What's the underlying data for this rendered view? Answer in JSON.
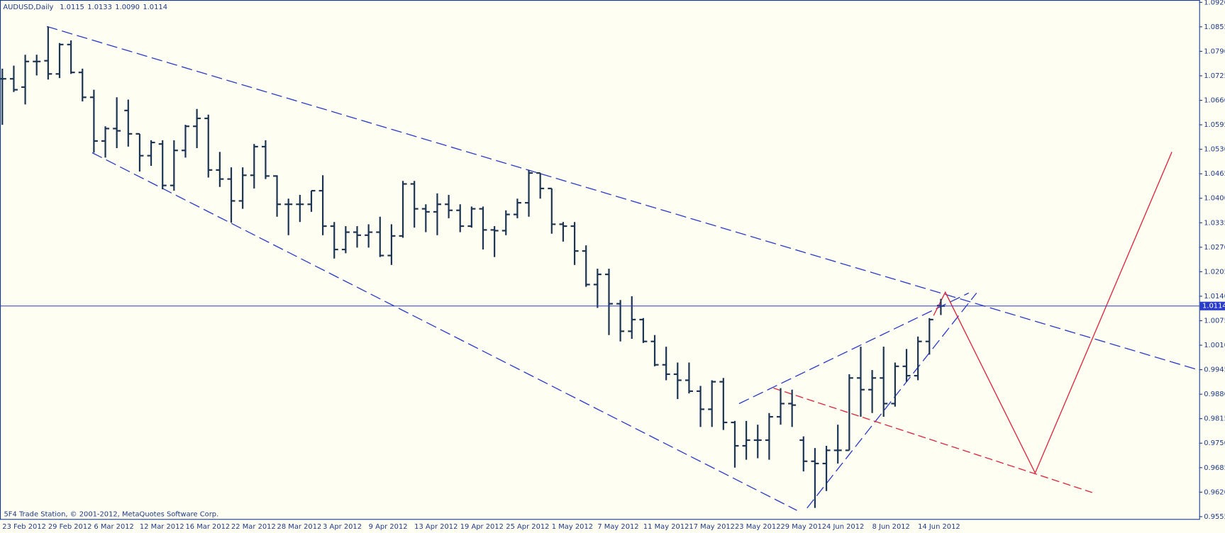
{
  "chart_data": {
    "type": "ohlc",
    "title": "AUDUSD,Daily",
    "header_values": [
      "1.0115",
      "1.0133",
      "1.0090",
      "1.0114"
    ],
    "footer": "5F4 Trade Station, © 2001-2012, MetaQuotes Software Corp.",
    "color": "#1c3553",
    "categories": [
      "23 Feb 2012",
      null,
      null,
      null,
      "29 Feb 2012",
      null,
      null,
      null,
      "6 Mar 2012",
      null,
      null,
      null,
      "12 Mar 2012",
      null,
      null,
      null,
      "16 Mar 2012",
      null,
      null,
      null,
      "22 Mar 2012",
      null,
      null,
      null,
      "28 Mar 2012",
      null,
      null,
      null,
      "3 Apr 2012",
      null,
      null,
      null,
      "9 Apr 2012",
      null,
      null,
      null,
      "13 Apr 2012",
      null,
      null,
      null,
      "19 Apr 2012",
      null,
      null,
      null,
      "25 Apr 2012",
      null,
      null,
      null,
      "1 May 2012",
      null,
      null,
      null,
      "7 May 2012",
      null,
      null,
      null,
      "11 May 2012",
      null,
      null,
      null,
      "17 May 2012",
      null,
      null,
      null,
      "23 May 2012",
      null,
      null,
      null,
      "29 May 2012",
      null,
      null,
      null,
      "4 Jun 2012",
      null,
      null,
      null,
      "8 Jun 2012",
      null,
      null,
      null,
      "14 Jun 2012",
      null,
      null
    ],
    "open": [
      1.0717,
      1.0717,
      1.0695,
      1.0763,
      1.0765,
      1.073,
      1.0808,
      1.0734,
      1.0668,
      1.0552,
      1.0585,
      1.0633,
      1.0571,
      1.0513,
      1.0544,
      1.0434,
      1.0527,
      1.0591,
      1.0612,
      1.0475,
      1.0451,
      1.0393,
      1.0461,
      1.0537,
      1.0459,
      1.0384,
      1.0384,
      1.0384,
      1.042,
      1.0326,
      1.0264,
      1.031,
      1.0302,
      1.031,
      1.0248,
      1.03,
      1.0438,
      1.0372,
      1.0364,
      1.0384,
      1.0368,
      1.0326,
      1.0372,
      1.0316,
      1.0314,
      1.0357,
      1.0388,
      1.0467,
      1.0426,
      1.0331,
      1.0326,
      1.026,
      1.0171,
      1.0198,
      1.012,
      1.0047,
      1.0078,
      1.002,
      0.9958,
      0.9933,
      0.9917,
      0.9888,
      0.984,
      0.9913,
      0.9805,
      0.9743,
      0.9758,
      0.9758,
      0.982,
      0.9855,
      0.9758,
      0.9702,
      0.9696,
      0.9731,
      0.9731,
      0.9923,
      0.9892,
      0.9923,
      0.9855,
      0.9954,
      0.9929,
      1.002,
      1.0115
    ],
    "high": [
      1.0744,
      1.0752,
      1.0781,
      1.0781,
      1.0856,
      1.0812,
      1.0819,
      1.0744,
      1.0688,
      1.0591,
      1.0668,
      1.0662,
      1.0571,
      1.0554,
      1.0554,
      1.0554,
      1.0595,
      1.0637,
      1.0622,
      1.0523,
      1.0482,
      1.0482,
      1.0544,
      1.0554,
      1.0461,
      1.0399,
      1.0409,
      1.042,
      1.0461,
      1.0337,
      1.0326,
      1.0326,
      1.0331,
      1.0351,
      1.0331,
      1.0446,
      1.0446,
      1.0384,
      1.0413,
      1.0409,
      1.0384,
      1.0378,
      1.0378,
      1.0326,
      1.0368,
      1.0399,
      1.0475,
      1.0467,
      1.0426,
      1.0337,
      1.0337,
      1.0275,
      1.0213,
      1.0213,
      1.013,
      1.014,
      1.0082,
      1.0037,
      1.0006,
      0.9964,
      0.9964,
      0.9902,
      0.9917,
      0.9923,
      0.9809,
      0.9809,
      0.9799,
      0.983,
      0.9896,
      0.9892,
      0.9768,
      0.9737,
      0.9743,
      0.9799,
      0.9933,
      1.0006,
      0.9944,
      1.0006,
      0.9964,
      1.0,
      1.0033,
      1.0082,
      1.0133
    ],
    "low": [
      1.0595,
      1.0682,
      1.0649,
      1.0726,
      1.0715,
      1.0719,
      1.073,
      1.0657,
      1.0521,
      1.0508,
      1.0533,
      1.0537,
      1.0471,
      1.0486,
      1.0424,
      1.042,
      1.0508,
      1.0533,
      1.0455,
      1.043,
      1.0335,
      1.0372,
      1.0426,
      1.0451,
      1.0351,
      1.0302,
      1.0337,
      1.0364,
      1.0302,
      1.024,
      1.0254,
      1.0269,
      1.0269,
      1.0244,
      1.0223,
      1.0295,
      1.0322,
      1.031,
      1.0302,
      1.0347,
      1.031,
      1.0322,
      1.0264,
      1.0244,
      1.0302,
      1.0347,
      1.0351,
      1.0399,
      1.0306,
      1.0285,
      1.0223,
      1.0165,
      1.0109,
      1.0037,
      1.002,
      1.0027,
      1.0016,
      0.9954,
      0.9917,
      0.9867,
      0.9882,
      0.9793,
      0.9793,
      0.9785,
      0.9685,
      0.9706,
      0.971,
      0.9706,
      0.9799,
      0.9793,
      0.9675,
      0.9578,
      0.9623,
      0.9696,
      0.9731,
      0.982,
      0.983,
      0.982,
      0.9847,
      0.9913,
      0.9917,
      0.9985,
      1.009
    ],
    "close": [
      1.0717,
      1.0688,
      1.0763,
      1.0763,
      1.073,
      1.0808,
      1.0734,
      1.0668,
      1.0552,
      1.0585,
      1.0579,
      1.0571,
      1.0513,
      1.0548,
      1.0434,
      1.0527,
      1.0591,
      1.0612,
      1.0475,
      1.0451,
      1.0393,
      1.0461,
      1.0537,
      1.0459,
      1.0384,
      1.0384,
      1.0384,
      1.042,
      1.0326,
      1.0264,
      1.031,
      1.0302,
      1.031,
      1.0248,
      1.03,
      1.0438,
      1.0372,
      1.0364,
      1.0384,
      1.0368,
      1.0326,
      1.0372,
      1.0316,
      1.0314,
      1.0357,
      1.0388,
      1.0467,
      1.0426,
      1.0331,
      1.0326,
      1.026,
      1.0171,
      1.0198,
      1.012,
      1.0047,
      1.0078,
      1.002,
      0.9958,
      0.9933,
      0.9917,
      0.9888,
      0.984,
      0.9913,
      0.9805,
      0.9743,
      0.9758,
      0.9758,
      0.982,
      0.9855,
      0.9851,
      0.9702,
      0.9696,
      0.9731,
      0.9731,
      0.9923,
      0.9892,
      0.9923,
      0.9855,
      0.9954,
      0.9929,
      1.002,
      1.0078,
      1.0114
    ],
    "ylim": [
      0.9555,
      {
        "value": 1.092,
        "label": "1.0920"
      }
    ],
    "yticks": [
      0.9555,
      {
        "value": 0.962,
        "label": "0.9620"
      },
      0.9685,
      {
        "value": 0.975,
        "label": "0.9750"
      },
      0.9815,
      {
        "value": 0.988,
        "label": "0.9880"
      },
      0.9945,
      {
        "value": 1.001,
        "label": "1.0010"
      },
      1.0075,
      {
        "value": 1.014,
        "label": "1.0140"
      },
      1.0205,
      {
        "value": 1.027,
        "label": "1.0270"
      },
      1.0335,
      {
        "value": 1.04,
        "label": "1.0400"
      },
      1.0465,
      {
        "value": 1.053,
        "label": "1.0530"
      },
      1.0595,
      {
        "value": 1.066,
        "label": "1.0660"
      },
      1.0725,
      {
        "value": 1.079,
        "label": "1.0790"
      },
      1.0855,
      {
        "value": 1.092,
        "label": "1.0920"
      }
    ],
    "grid": false
  }
}
